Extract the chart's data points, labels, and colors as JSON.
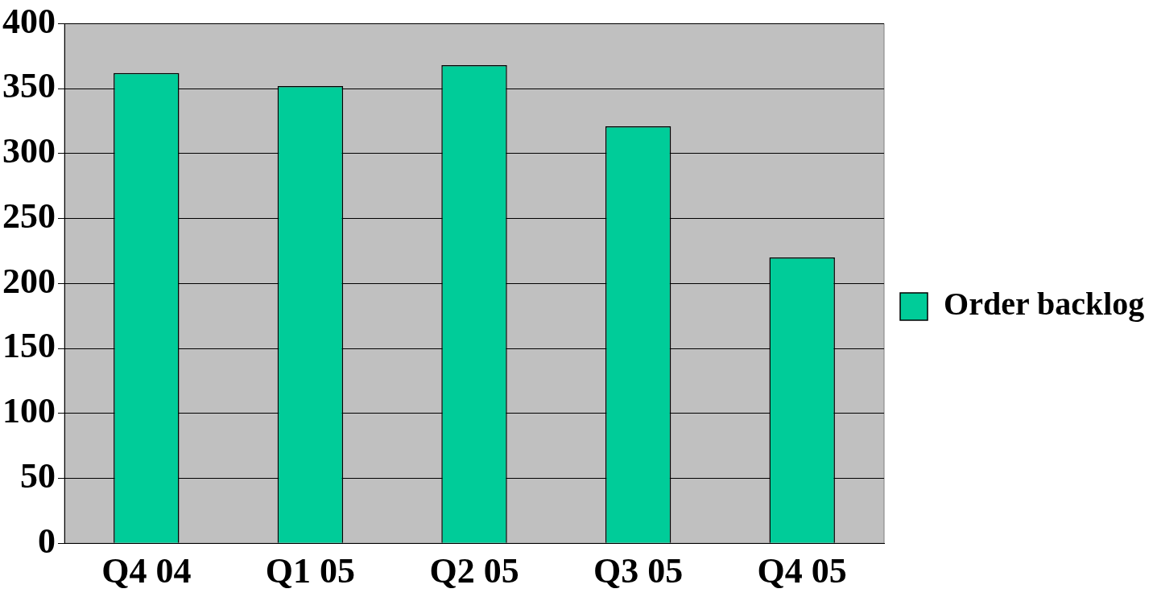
{
  "chart_data": {
    "type": "bar",
    "categories": [
      "Q4 04",
      "Q1 05",
      "Q2 05",
      "Q3 05",
      "Q4 05"
    ],
    "series": [
      {
        "name": "Order backlog",
        "color": "#00cc99",
        "values": [
          362,
          352,
          368,
          321,
          220
        ]
      }
    ],
    "ylim": [
      0,
      400
    ],
    "yticks": [
      0,
      50,
      100,
      150,
      200,
      250,
      300,
      350,
      400
    ],
    "grid": "y",
    "legend": "right"
  }
}
